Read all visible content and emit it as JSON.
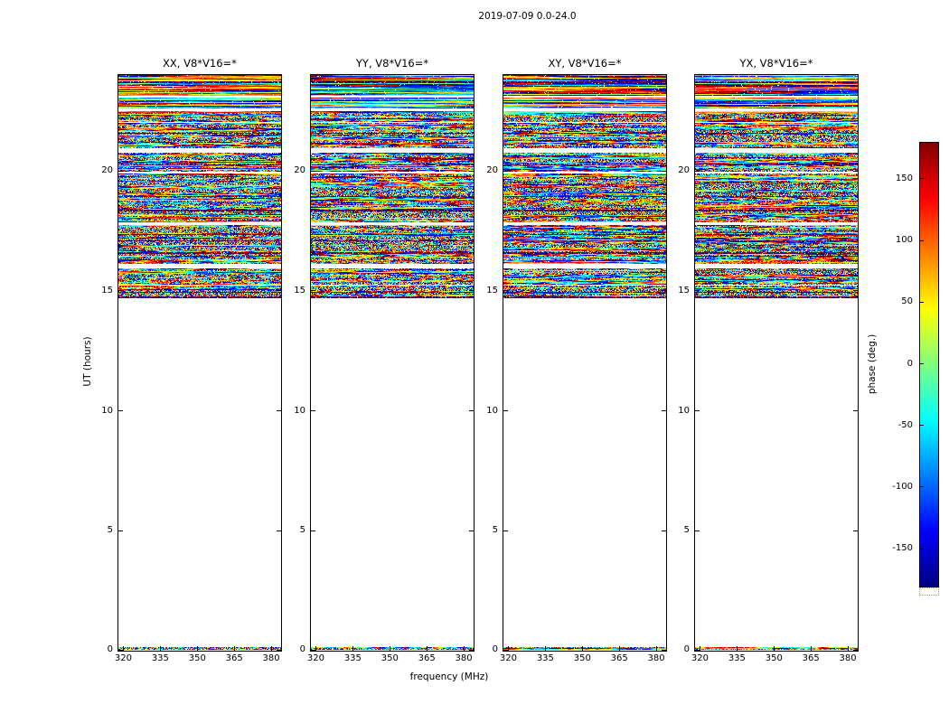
{
  "figure": {
    "title": "2019-07-09 0.0-24.0",
    "xlabel": "frequency (MHz)",
    "ylabel": "UT (hours)",
    "colorbar_label": "phase (deg.)",
    "background": "#ffffff",
    "text_color": "#000000"
  },
  "chart_data": {
    "type": "heatmap",
    "title": "2019-07-09 0.0-24.0",
    "xlabel": "frequency (MHz)",
    "ylabel": "UT (hours)",
    "xlim": [
      318,
      384
    ],
    "ylim": [
      0,
      24
    ],
    "x_ticks": [
      320,
      335,
      350,
      365,
      380
    ],
    "y_ticks": [
      0,
      5,
      10,
      15,
      20
    ],
    "panels": [
      {
        "label": "XX",
        "title": "XX, V8*V16=*"
      },
      {
        "label": "YY",
        "title": "YY, V8*V16=*"
      },
      {
        "label": "XY",
        "title": "XY, V8*V16=*"
      },
      {
        "label": "YX",
        "title": "YX, V8*V16=*"
      }
    ],
    "values_description": "per-pixel visibility phase noise in degrees, range -180 to 180; dense speckle with horizontal white time-gaps and dark saturated bands; data present only for UT ~14.7-24.0 hours plus a thin strip near UT 0; UT ~0.2-14.7 is blank (white)",
    "data_region": {
      "y_start": 14.7,
      "y_end": 24.0,
      "bottom_strip": [
        0.0,
        0.15
      ]
    },
    "colorbar": {
      "label": "phase (deg.)",
      "ticks": [
        150,
        100,
        50,
        0,
        -50,
        -100,
        -150
      ],
      "vmin": -180,
      "vmax": 180,
      "colormap": "jet",
      "stops": [
        {
          "pos": 0.0,
          "color": "#000080"
        },
        {
          "pos": 0.125,
          "color": "#0000ff"
        },
        {
          "pos": 0.375,
          "color": "#00ffff"
        },
        {
          "pos": 0.625,
          "color": "#ffff00"
        },
        {
          "pos": 0.875,
          "color": "#ff0000"
        },
        {
          "pos": 1.0,
          "color": "#800000"
        }
      ]
    },
    "noise": {
      "structure_seed": 1337,
      "panel_seeds": [
        101,
        202,
        303,
        404
      ]
    }
  }
}
